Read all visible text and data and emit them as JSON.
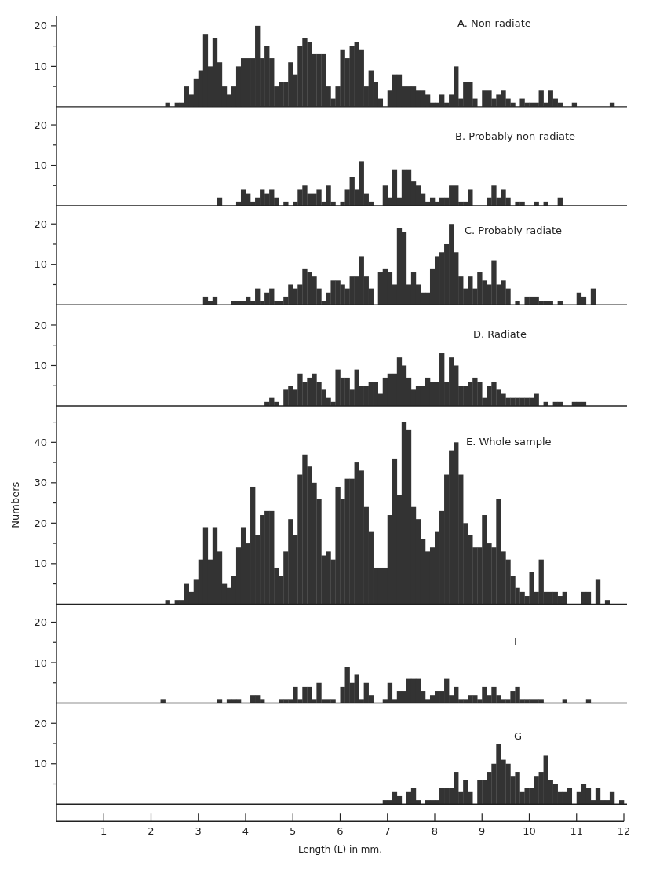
{
  "chart_data": [
    {
      "type": "histogram",
      "title": "A. Non-radiate",
      "color": "#333333",
      "xlim": [
        0,
        12
      ],
      "ylim": [
        0,
        22.5
      ],
      "yticks": [
        {
          "value": 5,
          "label": null
        },
        10,
        {
          "value": 15,
          "label": null
        },
        20
      ],
      "tick_labels": "y",
      "bins": [
        2.0,
        2.1,
        2.2,
        2.3,
        2.4,
        2.5,
        2.6,
        2.7,
        2.8,
        2.9,
        3.0,
        3.1,
        3.2,
        3.3,
        3.4,
        3.5,
        3.6,
        3.7,
        3.8,
        3.9,
        4.0,
        4.1,
        4.2,
        4.3,
        4.4,
        4.5,
        4.6,
        4.7,
        4.8,
        4.9,
        5.0,
        5.1,
        5.2,
        5.3,
        5.4,
        5.5,
        5.6,
        5.7,
        5.8,
        5.9,
        6.0,
        6.1,
        6.2,
        6.3,
        6.4,
        6.5,
        6.6,
        6.7,
        6.8,
        6.9,
        7.0,
        7.1,
        7.2,
        7.3,
        7.4,
        7.5,
        7.6,
        7.7,
        7.8,
        7.9,
        8.0,
        8.1,
        8.2,
        8.3,
        8.4,
        8.5,
        8.6,
        8.7,
        8.8,
        8.9,
        9.0,
        9.1,
        9.2,
        9.3,
        9.4,
        9.5,
        9.6,
        9.7,
        9.8,
        9.9,
        10.0,
        10.1,
        10.2,
        10.3,
        10.4,
        10.5,
        10.6,
        10.7,
        10.8,
        10.9,
        11.0,
        11.1,
        11.2,
        11.3,
        11.4,
        11.5,
        11.6,
        11.7,
        11.8,
        11.9,
        12.0
      ],
      "values": [
        0,
        0,
        0,
        1,
        0,
        1,
        1,
        5,
        3,
        7,
        9,
        18,
        10,
        17,
        11,
        5,
        3,
        5,
        10,
        12,
        12,
        12,
        20,
        12,
        15,
        12,
        5,
        6,
        6,
        11,
        8,
        15,
        17,
        16,
        13,
        13,
        13,
        5,
        2,
        5,
        14,
        12,
        15,
        16,
        14,
        5,
        9,
        6,
        2,
        0,
        4,
        8,
        8,
        5,
        5,
        5,
        4,
        4,
        3,
        1,
        1,
        3,
        1,
        3,
        10,
        2,
        6,
        6,
        2,
        0,
        4,
        4,
        2,
        3,
        4,
        2,
        1,
        0,
        2,
        1,
        1,
        1,
        4,
        1,
        4,
        2,
        1,
        0,
        0,
        1,
        0,
        0,
        0,
        0,
        0,
        0,
        0,
        1,
        0,
        0
      ]
    },
    {
      "type": "histogram",
      "title": "B. Probably  non-radiate",
      "color": "#333333",
      "xlim": [
        0,
        12
      ],
      "ylim": [
        0,
        24.5
      ],
      "yticks": [
        {
          "value": 5,
          "label": null
        },
        10,
        {
          "value": 15,
          "label": null
        },
        20
      ],
      "tick_labels": "y",
      "bins": [
        2.0,
        2.1,
        2.2,
        2.3,
        2.4,
        2.5,
        2.6,
        2.7,
        2.8,
        2.9,
        3.0,
        3.1,
        3.2,
        3.3,
        3.4,
        3.5,
        3.6,
        3.7,
        3.8,
        3.9,
        4.0,
        4.1,
        4.2,
        4.3,
        4.4,
        4.5,
        4.6,
        4.7,
        4.8,
        4.9,
        5.0,
        5.1,
        5.2,
        5.3,
        5.4,
        5.5,
        5.6,
        5.7,
        5.8,
        5.9,
        6.0,
        6.1,
        6.2,
        6.3,
        6.4,
        6.5,
        6.6,
        6.7,
        6.8,
        6.9,
        7.0,
        7.1,
        7.2,
        7.3,
        7.4,
        7.5,
        7.6,
        7.7,
        7.8,
        7.9,
        8.0,
        8.1,
        8.2,
        8.3,
        8.4,
        8.5,
        8.6,
        8.7,
        8.8,
        8.9,
        9.0,
        9.1,
        9.2,
        9.3,
        9.4,
        9.5,
        9.6,
        9.7,
        9.8,
        9.9,
        10.0,
        10.1,
        10.2,
        10.3,
        10.4,
        10.5,
        10.6,
        10.7,
        10.8,
        10.9,
        11.0,
        11.1,
        11.2,
        11.3,
        11.4,
        11.5,
        11.6,
        11.7,
        11.8,
        11.9,
        12.0
      ],
      "values": [
        0,
        0,
        0,
        0,
        0,
        0,
        0,
        0,
        0,
        0,
        0,
        0,
        0,
        0,
        2,
        0,
        0,
        0,
        1,
        4,
        3,
        1,
        2,
        4,
        3,
        4,
        2,
        0,
        1,
        0,
        1,
        4,
        5,
        3,
        3,
        4,
        1,
        5,
        1,
        0,
        1,
        4,
        7,
        4,
        11,
        3,
        1,
        0,
        0,
        5,
        2,
        9,
        2,
        9,
        9,
        6,
        5,
        3,
        1,
        2,
        1,
        2,
        2,
        5,
        5,
        1,
        1,
        4,
        0,
        0,
        0,
        2,
        5,
        2,
        4,
        2,
        0,
        1,
        1,
        0,
        0,
        1,
        0,
        1,
        0,
        0,
        2,
        0,
        0,
        0,
        0,
        0,
        0,
        0,
        0,
        0,
        0,
        0,
        0,
        0
      ]
    },
    {
      "type": "histogram",
      "title": "C. Probably  radiate",
      "color": "#333333",
      "xlim": [
        0,
        12
      ],
      "ylim": [
        0,
        24.5
      ],
      "yticks": [
        {
          "value": 5,
          "label": null
        },
        10,
        {
          "value": 15,
          "label": null
        },
        20
      ],
      "tick_labels": "y",
      "bins": [
        2.0,
        2.1,
        2.2,
        2.3,
        2.4,
        2.5,
        2.6,
        2.7,
        2.8,
        2.9,
        3.0,
        3.1,
        3.2,
        3.3,
        3.4,
        3.5,
        3.6,
        3.7,
        3.8,
        3.9,
        4.0,
        4.1,
        4.2,
        4.3,
        4.4,
        4.5,
        4.6,
        4.7,
        4.8,
        4.9,
        5.0,
        5.1,
        5.2,
        5.3,
        5.4,
        5.5,
        5.6,
        5.7,
        5.8,
        5.9,
        6.0,
        6.1,
        6.2,
        6.3,
        6.4,
        6.5,
        6.6,
        6.7,
        6.8,
        6.9,
        7.0,
        7.1,
        7.2,
        7.3,
        7.4,
        7.5,
        7.6,
        7.7,
        7.8,
        7.9,
        8.0,
        8.1,
        8.2,
        8.3,
        8.4,
        8.5,
        8.6,
        8.7,
        8.8,
        8.9,
        9.0,
        9.1,
        9.2,
        9.3,
        9.4,
        9.5,
        9.6,
        9.7,
        9.8,
        9.9,
        10.0,
        10.1,
        10.2,
        10.3,
        10.4,
        10.5,
        10.6,
        10.7,
        10.8,
        10.9,
        11.0,
        11.1,
        11.2,
        11.3,
        11.4,
        11.5,
        11.6,
        11.7,
        11.8,
        11.9,
        12.0
      ],
      "values": [
        0,
        0,
        0,
        0,
        0,
        0,
        0,
        0,
        0,
        0,
        0,
        2,
        1,
        2,
        0,
        0,
        0,
        1,
        1,
        1,
        2,
        1,
        4,
        1,
        3,
        4,
        1,
        1,
        2,
        5,
        4,
        5,
        9,
        8,
        7,
        4,
        1,
        3,
        6,
        6,
        5,
        4,
        7,
        7,
        12,
        7,
        4,
        0,
        8,
        9,
        8,
        5,
        19,
        18,
        5,
        8,
        5,
        3,
        3,
        9,
        12,
        13,
        15,
        20,
        13,
        7,
        4,
        7,
        4,
        8,
        6,
        5,
        11,
        5,
        6,
        4,
        0,
        1,
        0,
        2,
        2,
        2,
        1,
        1,
        1,
        0,
        1,
        0,
        0,
        0,
        3,
        2,
        0,
        4,
        0,
        0,
        0,
        0,
        0,
        0
      ]
    },
    {
      "type": "histogram",
      "title": "D. Radiate",
      "color": "#333333",
      "xlim": [
        0,
        12
      ],
      "ylim": [
        0,
        25
      ],
      "yticks": [
        {
          "value": 5,
          "label": null
        },
        10,
        {
          "value": 15,
          "label": null
        },
        20
      ],
      "tick_labels": "y",
      "bins": [
        2.0,
        2.1,
        2.2,
        2.3,
        2.4,
        2.5,
        2.6,
        2.7,
        2.8,
        2.9,
        3.0,
        3.1,
        3.2,
        3.3,
        3.4,
        3.5,
        3.6,
        3.7,
        3.8,
        3.9,
        4.0,
        4.1,
        4.2,
        4.3,
        4.4,
        4.5,
        4.6,
        4.7,
        4.8,
        4.9,
        5.0,
        5.1,
        5.2,
        5.3,
        5.4,
        5.5,
        5.6,
        5.7,
        5.8,
        5.9,
        6.0,
        6.1,
        6.2,
        6.3,
        6.4,
        6.5,
        6.6,
        6.7,
        6.8,
        6.9,
        7.0,
        7.1,
        7.2,
        7.3,
        7.4,
        7.5,
        7.6,
        7.7,
        7.8,
        7.9,
        8.0,
        8.1,
        8.2,
        8.3,
        8.4,
        8.5,
        8.6,
        8.7,
        8.8,
        8.9,
        9.0,
        9.1,
        9.2,
        9.3,
        9.4,
        9.5,
        9.6,
        9.7,
        9.8,
        9.9,
        10.0,
        10.1,
        10.2,
        10.3,
        10.4,
        10.5,
        10.6,
        10.7,
        10.8,
        10.9,
        11.0,
        11.1,
        11.2,
        11.3,
        11.4,
        11.5,
        11.6,
        11.7,
        11.8,
        11.9,
        12.0
      ],
      "values": [
        0,
        0,
        0,
        0,
        0,
        0,
        0,
        0,
        0,
        0,
        0,
        0,
        0,
        0,
        0,
        0,
        0,
        0,
        0,
        0,
        0,
        0,
        0,
        0,
        1,
        2,
        1,
        0,
        4,
        5,
        4,
        8,
        6,
        7,
        8,
        6,
        4,
        2,
        1,
        9,
        7,
        7,
        4,
        9,
        5,
        5,
        6,
        6,
        3,
        7,
        8,
        8,
        12,
        10,
        7,
        4,
        5,
        5,
        7,
        6,
        6,
        13,
        6,
        12,
        10,
        5,
        5,
        6,
        7,
        6,
        2,
        5,
        6,
        4,
        3,
        2,
        2,
        2,
        2,
        2,
        2,
        3,
        0,
        1,
        0,
        1,
        1,
        0,
        0,
        1,
        1,
        1,
        0,
        0,
        0,
        0,
        0,
        0,
        0,
        0
      ]
    },
    {
      "type": "histogram",
      "title": "E. Whole sample",
      "ylabel": "Numbers",
      "color": "#333333",
      "xlim": [
        0,
        12
      ],
      "ylim": [
        0,
        49
      ],
      "yticks": [
        {
          "value": 5,
          "label": null
        },
        10,
        {
          "value": 15,
          "label": null
        },
        20,
        {
          "value": 25,
          "label": null
        },
        30,
        {
          "value": 35,
          "label": null
        },
        40,
        {
          "value": 45,
          "label": null
        }
      ],
      "tick_labels": "y",
      "bins": [
        2.0,
        2.1,
        2.2,
        2.3,
        2.4,
        2.5,
        2.6,
        2.7,
        2.8,
        2.9,
        3.0,
        3.1,
        3.2,
        3.3,
        3.4,
        3.5,
        3.6,
        3.7,
        3.8,
        3.9,
        4.0,
        4.1,
        4.2,
        4.3,
        4.4,
        4.5,
        4.6,
        4.7,
        4.8,
        4.9,
        5.0,
        5.1,
        5.2,
        5.3,
        5.4,
        5.5,
        5.6,
        5.7,
        5.8,
        5.9,
        6.0,
        6.1,
        6.2,
        6.3,
        6.4,
        6.5,
        6.6,
        6.7,
        6.8,
        6.9,
        7.0,
        7.1,
        7.2,
        7.3,
        7.4,
        7.5,
        7.6,
        7.7,
        7.8,
        7.9,
        8.0,
        8.1,
        8.2,
        8.3,
        8.4,
        8.5,
        8.6,
        8.7,
        8.8,
        8.9,
        9.0,
        9.1,
        9.2,
        9.3,
        9.4,
        9.5,
        9.6,
        9.7,
        9.8,
        9.9,
        10.0,
        10.1,
        10.2,
        10.3,
        10.4,
        10.5,
        10.6,
        10.7,
        10.8,
        10.9,
        11.0,
        11.1,
        11.2,
        11.3,
        11.4,
        11.5,
        11.6,
        11.7,
        11.8,
        11.9,
        12.0
      ],
      "values": [
        0,
        0,
        0,
        1,
        0,
        1,
        1,
        5,
        3,
        6,
        11,
        19,
        11,
        19,
        13,
        5,
        4,
        7,
        14,
        19,
        15,
        29,
        17,
        22,
        23,
        23,
        9,
        7,
        13,
        21,
        17,
        32,
        37,
        34,
        30,
        26,
        12,
        13,
        11,
        29,
        26,
        31,
        31,
        35,
        33,
        24,
        18,
        9,
        9,
        9,
        22,
        36,
        27,
        45,
        43,
        24,
        21,
        16,
        13,
        14,
        18,
        23,
        32,
        38,
        40,
        32,
        20,
        17,
        14,
        14,
        22,
        15,
        14,
        26,
        13,
        11,
        7,
        4,
        3,
        2,
        8,
        3,
        11,
        3,
        3,
        3,
        2,
        3,
        0,
        0,
        0,
        3,
        3,
        0,
        6,
        0,
        1,
        0,
        0,
        0
      ]
    },
    {
      "type": "histogram",
      "title": "F",
      "color": "#333333",
      "xlim": [
        0,
        12
      ],
      "ylim": [
        0,
        24.5
      ],
      "yticks": [
        {
          "value": 5,
          "label": null
        },
        10,
        {
          "value": 15,
          "label": null
        },
        20
      ],
      "tick_labels": "y",
      "bins": [
        2.0,
        2.1,
        2.2,
        2.3,
        2.4,
        2.5,
        2.6,
        2.7,
        2.8,
        2.9,
        3.0,
        3.1,
        3.2,
        3.3,
        3.4,
        3.5,
        3.6,
        3.7,
        3.8,
        3.9,
        4.0,
        4.1,
        4.2,
        4.3,
        4.4,
        4.5,
        4.6,
        4.7,
        4.8,
        4.9,
        5.0,
        5.1,
        5.2,
        5.3,
        5.4,
        5.5,
        5.6,
        5.7,
        5.8,
        5.9,
        6.0,
        6.1,
        6.2,
        6.3,
        6.4,
        6.5,
        6.6,
        6.7,
        6.8,
        6.9,
        7.0,
        7.1,
        7.2,
        7.3,
        7.4,
        7.5,
        7.6,
        7.7,
        7.8,
        7.9,
        8.0,
        8.1,
        8.2,
        8.3,
        8.4,
        8.5,
        8.6,
        8.7,
        8.8,
        8.9,
        9.0,
        9.1,
        9.2,
        9.3,
        9.4,
        9.5,
        9.6,
        9.7,
        9.8,
        9.9,
        10.0,
        10.1,
        10.2,
        10.3,
        10.4,
        10.5,
        10.6,
        10.7,
        10.8,
        10.9,
        11.0,
        11.1,
        11.2,
        11.3,
        11.4,
        11.5,
        11.6,
        11.7,
        11.8,
        11.9,
        12.0
      ],
      "values": [
        0,
        0,
        1,
        0,
        0,
        0,
        0,
        0,
        0,
        0,
        0,
        0,
        0,
        0,
        1,
        0,
        1,
        1,
        1,
        0,
        0,
        2,
        2,
        1,
        0,
        0,
        0,
        1,
        1,
        1,
        4,
        1,
        4,
        4,
        1,
        5,
        1,
        1,
        1,
        0,
        4,
        9,
        5,
        7,
        1,
        5,
        2,
        0,
        0,
        1,
        5,
        1,
        3,
        3,
        6,
        6,
        6,
        3,
        1,
        2,
        3,
        3,
        6,
        2,
        4,
        1,
        1,
        2,
        2,
        1,
        4,
        2,
        4,
        2,
        1,
        1,
        3,
        4,
        1,
        1,
        1,
        1,
        1,
        0,
        0,
        0,
        0,
        1,
        0,
        0,
        0,
        0,
        1,
        0,
        0,
        0,
        0,
        0,
        0,
        0
      ]
    },
    {
      "type": "histogram",
      "title": "G",
      "xlabel": "Length (L) in mm.",
      "color": "#333333",
      "xlim": [
        0,
        12
      ],
      "xticks": [
        1,
        2,
        3,
        4,
        5,
        6,
        7,
        8,
        9,
        10,
        11,
        12
      ],
      "ylim": [
        0,
        25
      ],
      "yticks": [
        {
          "value": 5,
          "label": null
        },
        10,
        {
          "value": 15,
          "label": null
        },
        20
      ],
      "bins": [
        2.0,
        2.1,
        2.2,
        2.3,
        2.4,
        2.5,
        2.6,
        2.7,
        2.8,
        2.9,
        3.0,
        3.1,
        3.2,
        3.3,
        3.4,
        3.5,
        3.6,
        3.7,
        3.8,
        3.9,
        4.0,
        4.1,
        4.2,
        4.3,
        4.4,
        4.5,
        4.6,
        4.7,
        4.8,
        4.9,
        5.0,
        5.1,
        5.2,
        5.3,
        5.4,
        5.5,
        5.6,
        5.7,
        5.8,
        5.9,
        6.0,
        6.1,
        6.2,
        6.3,
        6.4,
        6.5,
        6.6,
        6.7,
        6.8,
        6.9,
        7.0,
        7.1,
        7.2,
        7.3,
        7.4,
        7.5,
        7.6,
        7.7,
        7.8,
        7.9,
        8.0,
        8.1,
        8.2,
        8.3,
        8.4,
        8.5,
        8.6,
        8.7,
        8.8,
        8.9,
        9.0,
        9.1,
        9.2,
        9.3,
        9.4,
        9.5,
        9.6,
        9.7,
        9.8,
        9.9,
        10.0,
        10.1,
        10.2,
        10.3,
        10.4,
        10.5,
        10.6,
        10.7,
        10.8,
        10.9,
        11.0,
        11.1,
        11.2,
        11.3,
        11.4,
        11.5,
        11.6,
        11.7,
        11.8,
        11.9,
        12.0
      ],
      "values": [
        0,
        0,
        0,
        0,
        0,
        0,
        0,
        0,
        0,
        0,
        0,
        0,
        0,
        0,
        0,
        0,
        0,
        0,
        0,
        0,
        0,
        0,
        0,
        0,
        0,
        0,
        0,
        0,
        0,
        0,
        0,
        0,
        0,
        0,
        0,
        0,
        0,
        0,
        0,
        0,
        0,
        0,
        0,
        0,
        0,
        0,
        0,
        0,
        0,
        1,
        1,
        3,
        2,
        0,
        3,
        4,
        1,
        0,
        1,
        1,
        1,
        4,
        4,
        4,
        8,
        3,
        6,
        3,
        0,
        6,
        6,
        8,
        10,
        15,
        11,
        10,
        7,
        8,
        3,
        4,
        4,
        7,
        8,
        12,
        6,
        5,
        3,
        3,
        4,
        0,
        3,
        5,
        4,
        1,
        4,
        1,
        1,
        3,
        0,
        1
      ]
    }
  ]
}
